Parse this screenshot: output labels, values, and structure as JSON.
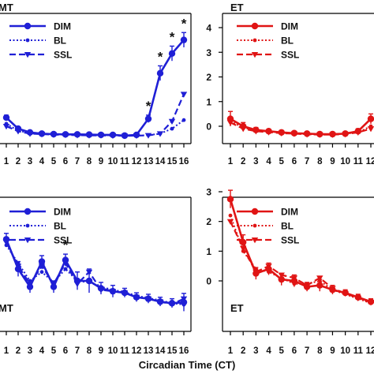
{
  "xlabel": "Circadian Time (CT)",
  "colors": {
    "blue": "#1f1fd6",
    "red": "#e01414"
  },
  "chart_data": [
    {
      "type": "line",
      "panel": "top-left",
      "tag": "MT",
      "color": "#1f1fd6",
      "x": [
        1,
        2,
        3,
        4,
        5,
        6,
        7,
        8,
        9,
        10,
        11,
        12,
        13,
        14,
        15,
        16
      ],
      "ylim": [
        -0.4,
        4.4
      ],
      "yticks": [],
      "legend": [
        "DIM",
        "BL",
        "SSL"
      ],
      "series": [
        {
          "name": "DIM",
          "style": "solid-circle",
          "values": [
            0.35,
            -0.1,
            -0.25,
            -0.3,
            -0.32,
            -0.33,
            -0.33,
            -0.34,
            -0.35,
            -0.35,
            -0.38,
            -0.35,
            0.3,
            2.15,
            2.95,
            3.5
          ]
        },
        {
          "name": "BL",
          "style": "dotted-dot",
          "values": [
            0.1,
            -0.18,
            -0.28,
            -0.32,
            -0.33,
            -0.34,
            -0.35,
            -0.36,
            -0.36,
            -0.37,
            -0.38,
            -0.38,
            -0.36,
            -0.3,
            -0.1,
            0.25
          ]
        },
        {
          "name": "SSL",
          "style": "dashed-triangle",
          "values": [
            0.0,
            -0.2,
            -0.3,
            -0.32,
            -0.34,
            -0.35,
            -0.36,
            -0.37,
            -0.37,
            -0.38,
            -0.39,
            -0.38,
            -0.37,
            -0.3,
            0.2,
            1.3
          ]
        }
      ],
      "errors": {
        "DIM": [
          0.1,
          0.05,
          0.05,
          0.05,
          0.05,
          0.05,
          0.05,
          0.05,
          0.05,
          0.05,
          0.05,
          0.05,
          0.15,
          0.3,
          0.3,
          0.3
        ]
      },
      "significance": [
        {
          "x": 13,
          "label": "*"
        },
        {
          "x": 14,
          "label": "*"
        },
        {
          "x": 15,
          "label": "*"
        },
        {
          "x": 16,
          "label": "*"
        }
      ]
    },
    {
      "type": "line",
      "panel": "top-right",
      "tag": "ET",
      "color": "#e01414",
      "x": [
        1,
        2,
        3,
        4,
        5,
        6,
        7,
        8,
        9,
        10,
        11,
        12
      ],
      "ylim": [
        -0.4,
        4.4
      ],
      "yticks": [
        "0",
        "1",
        "2",
        "3",
        "4"
      ],
      "legend": [
        "DIM",
        "BL",
        "SSL"
      ],
      "series": [
        {
          "name": "DIM",
          "style": "solid-circle",
          "values": [
            0.3,
            0.0,
            -0.15,
            -0.2,
            -0.25,
            -0.28,
            -0.3,
            -0.32,
            -0.32,
            -0.3,
            -0.2,
            0.3
          ]
        },
        {
          "name": "BL",
          "style": "dotted-dot",
          "values": [
            0.2,
            -0.05,
            -0.18,
            -0.22,
            -0.26,
            -0.3,
            -0.32,
            -0.34,
            -0.33,
            -0.3,
            -0.25,
            0.0
          ]
        },
        {
          "name": "SSL",
          "style": "dashed-triangle",
          "values": [
            0.15,
            -0.1,
            -0.2,
            -0.24,
            -0.28,
            -0.3,
            -0.33,
            -0.34,
            -0.34,
            -0.32,
            -0.25,
            -0.1
          ]
        }
      ],
      "errors": {
        "DIM": [
          0.3,
          0.15,
          0.1,
          0.08,
          0.08,
          0.08,
          0.08,
          0.08,
          0.08,
          0.08,
          0.1,
          0.2
        ]
      },
      "significance": []
    },
    {
      "type": "line",
      "panel": "bottom-left",
      "tag": "MT",
      "color": "#1f1fd6",
      "x": [
        1,
        2,
        3,
        4,
        5,
        6,
        7,
        8,
        9,
        10,
        11,
        12,
        13,
        14,
        15,
        16
      ],
      "ylim": [
        -1.05,
        3.25
      ],
      "yticks": [],
      "legend": [
        "DIM",
        "BL",
        "SSL"
      ],
      "series": [
        {
          "name": "DIM",
          "style": "solid-circle",
          "values": [
            1.4,
            0.4,
            -0.2,
            0.65,
            -0.2,
            0.7,
            0.0,
            0.0,
            -0.25,
            -0.35,
            -0.4,
            -0.55,
            -0.6,
            -0.7,
            -0.75,
            -0.72
          ]
        },
        {
          "name": "BL",
          "style": "dotted-dot",
          "values": [
            1.2,
            0.6,
            0.0,
            0.3,
            -0.05,
            0.4,
            0.0,
            -0.05,
            -0.2,
            -0.3,
            -0.38,
            -0.5,
            -0.58,
            -0.65,
            -0.75,
            -0.8
          ]
        },
        {
          "name": "SSL",
          "style": "dashed-triangle",
          "values": [
            1.3,
            0.5,
            -0.1,
            0.5,
            -0.1,
            0.6,
            -0.1,
            0.3,
            -0.3,
            -0.35,
            -0.4,
            -0.55,
            -0.6,
            -0.7,
            -0.78,
            -0.6
          ]
        }
      ],
      "errors": {
        "DIM": [
          0.2,
          0.25,
          0.2,
          0.2,
          0.2,
          0.2,
          0.3,
          0.4,
          0.2,
          0.2,
          0.15,
          0.15,
          0.15,
          0.15,
          0.15,
          0.3
        ]
      },
      "significance": [
        {
          "x": 6,
          "label": "*"
        }
      ]
    },
    {
      "type": "line",
      "panel": "bottom-right",
      "tag": "ET",
      "color": "#e01414",
      "x": [
        1,
        2,
        3,
        4,
        5,
        6,
        7,
        8,
        9,
        10,
        11,
        12
      ],
      "ylim": [
        -1.05,
        3.25
      ],
      "yticks": [
        "0",
        "1",
        "2",
        "3"
      ],
      "legend": [
        "DIM",
        "BL",
        "SSL"
      ],
      "series": [
        {
          "name": "DIM",
          "style": "solid-circle",
          "values": [
            2.75,
            1.3,
            0.25,
            0.4,
            0.05,
            0.0,
            -0.2,
            -0.15,
            -0.3,
            -0.4,
            -0.55,
            -0.7
          ]
        },
        {
          "name": "BL",
          "style": "dotted-dot",
          "values": [
            2.2,
            1.0,
            0.4,
            0.3,
            0.1,
            -0.1,
            -0.1,
            0.0,
            -0.3,
            -0.45,
            -0.6,
            -0.75
          ]
        },
        {
          "name": "SSL",
          "style": "dashed-triangle",
          "values": [
            2.0,
            1.1,
            0.3,
            0.5,
            0.2,
            0.1,
            -0.15,
            0.1,
            -0.25,
            -0.42,
            -0.58,
            -0.72
          ]
        }
      ],
      "errors": {
        "DIM": [
          0.3,
          0.25,
          0.2,
          0.2,
          0.2,
          0.2,
          0.15,
          0.2,
          0.15,
          0.1,
          0.1,
          0.1
        ]
      },
      "significance": []
    }
  ]
}
